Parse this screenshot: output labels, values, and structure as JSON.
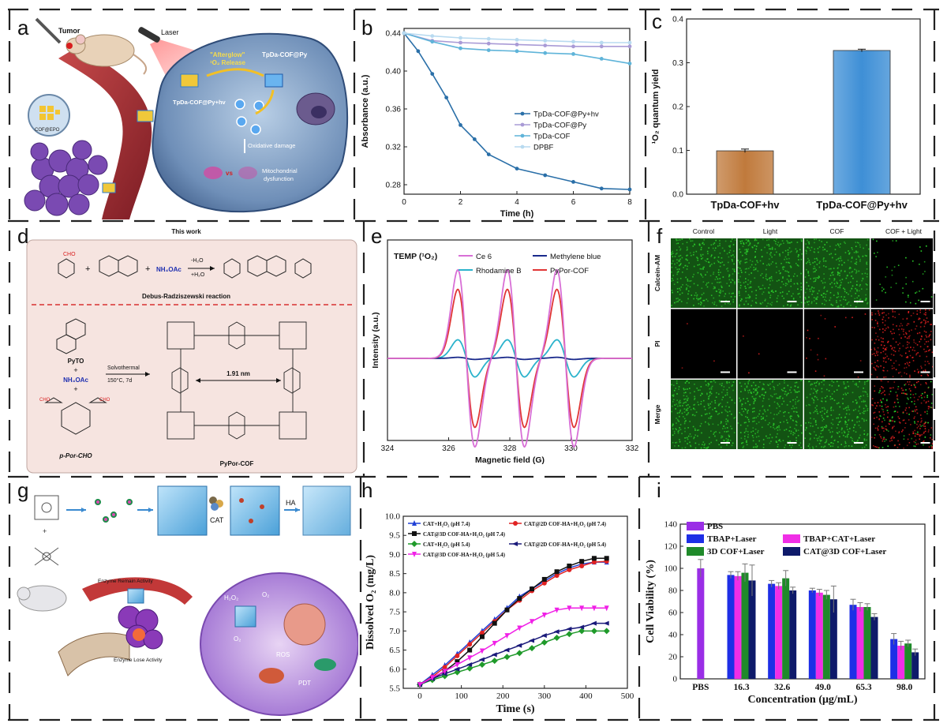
{
  "panel_letters": {
    "a": "a",
    "b": "b",
    "c": "c",
    "d": "d",
    "e": "e",
    "f": "f",
    "g": "g",
    "h": "h",
    "i": "i"
  },
  "panel_a": {
    "laser": "Laser",
    "tumor": "Tumor",
    "afterglow_line1": "\"Afterglow\"",
    "afterglow_line2": "¹O₂ Release",
    "cof_py": "TpDa-COF@Py",
    "cof_py_hv": "TpDa-COF@Py+hv",
    "oxidative": "Oxidative damage",
    "vs": "vs",
    "mito1": "Mitochondrial",
    "mito2": "dysfunction",
    "epo": "COF@EPO"
  },
  "panel_d": {
    "this_work": "This work",
    "reaction": "Debus-Radziszewski reaction",
    "cho": "CHO",
    "nh4oac": "NH₄OAc",
    "minus_h2o": "-H₂O",
    "plus_h2o": "+H₂O",
    "pyto": "PyTO",
    "plus": "+",
    "nh4oac2": "NH₄OAc",
    "solvo": "Solvothermal",
    "cond": "150°C, 7d",
    "dist": "1.91 nm",
    "porcho": "p-Por-CHO",
    "pypor": "PyPor-COF"
  },
  "panel_f": {
    "cols": [
      "Control",
      "Light",
      "COF",
      "COF + Light"
    ],
    "rows": [
      "Calcein-AM",
      "PI",
      "Merge"
    ]
  },
  "panel_g": {
    "cat": "CAT",
    "ha": "HA",
    "remain": "Enzyme Remain Activity",
    "lose": "Enzyme Lose Activity",
    "h2o2": "H₂O₂",
    "o2a": "O₂",
    "o2b": "O₂",
    "ros": "ROS",
    "pdt": "PDT"
  },
  "chart_data": [
    {
      "id": "b",
      "type": "line",
      "xlabel": "Time (h)",
      "ylabel": "Absorbance (a.u.)",
      "xlim": [
        0,
        8
      ],
      "ylim": [
        0.27,
        0.445
      ],
      "xticks": [
        0,
        2,
        4,
        6,
        8
      ],
      "yticks": [
        0.28,
        0.32,
        0.36,
        0.4,
        0.44
      ],
      "series": [
        {
          "name": "TpDa-COF@Py+hv",
          "color": "#2a6fa8",
          "x": [
            0,
            0.5,
            1,
            1.5,
            2,
            2.5,
            3,
            4,
            5,
            6,
            7,
            8
          ],
          "y": [
            0.44,
            0.421,
            0.397,
            0.372,
            0.343,
            0.328,
            0.312,
            0.297,
            0.29,
            0.283,
            0.276,
            0.275
          ]
        },
        {
          "name": "TpDa-COF@Py",
          "color": "#a99bd6",
          "x": [
            0,
            1,
            2,
            3,
            4,
            5,
            6,
            7,
            8
          ],
          "y": [
            0.44,
            0.432,
            0.43,
            0.429,
            0.428,
            0.427,
            0.426,
            0.426,
            0.426
          ]
        },
        {
          "name": "TpDa-COF",
          "color": "#5fb4d9",
          "x": [
            0,
            1,
            2,
            3,
            4,
            5,
            6,
            7,
            8
          ],
          "y": [
            0.44,
            0.431,
            0.424,
            0.422,
            0.421,
            0.419,
            0.418,
            0.413,
            0.408
          ]
        },
        {
          "name": "DPBF",
          "color": "#b8daf0",
          "x": [
            0,
            1,
            2,
            3,
            4,
            5,
            6,
            7,
            8
          ],
          "y": [
            0.44,
            0.437,
            0.435,
            0.434,
            0.433,
            0.432,
            0.431,
            0.43,
            0.43
          ]
        }
      ]
    },
    {
      "id": "c",
      "type": "bar",
      "ylabel": "¹O₂ quantum yield",
      "ylim": [
        0,
        0.4
      ],
      "yticks": [
        0,
        0.1,
        0.2,
        0.3,
        0.4
      ],
      "categories": [
        "TpDa-COF+hv",
        "TpDa-COF@Py+hv"
      ],
      "values": [
        0.099,
        0.328
      ],
      "errors": [
        0.004,
        0.003
      ],
      "colors": [
        "#c07a3c",
        "#3e8fd6"
      ]
    },
    {
      "id": "e",
      "type": "line",
      "title": "TEMP (¹O₂)",
      "xlabel": "Magnetic field (G)",
      "ylabel": "Intensity (a.u.)",
      "xlim": [
        324,
        332
      ],
      "xticks": [
        324,
        326,
        328,
        330,
        332
      ],
      "line_centers": [
        326.58,
        328.2,
        329.82
      ],
      "series": [
        {
          "name": "Ce 6",
          "color": "#d86fd6",
          "amplitude": 1.0
        },
        {
          "name": "Methylene blue",
          "color": "#1a2a8c",
          "amplitude": 0.012
        },
        {
          "name": "Rhodamine B",
          "color": "#2bb3cc",
          "amplitude": 0.21
        },
        {
          "name": "PyPor-COF",
          "color": "#e03535",
          "amplitude": 0.78
        }
      ]
    },
    {
      "id": "h",
      "type": "line",
      "xlabel": "Time (s)",
      "ylabel": "Dissolved O₂ (mg/L)",
      "xlim": [
        -40,
        500
      ],
      "ylim": [
        5.5,
        10.0
      ],
      "xticks": [
        0,
        100,
        200,
        300,
        400,
        500
      ],
      "yticks": [
        5.5,
        6.0,
        6.5,
        7.0,
        7.5,
        8.0,
        8.5,
        9.0,
        9.5,
        10.0
      ],
      "series": [
        {
          "name": "CAT+H₂O₂ (pH 7.4)",
          "color": "#1f3fd6",
          "marker": "triangle",
          "x": [
            0,
            30,
            60,
            90,
            120,
            150,
            180,
            210,
            240,
            270,
            300,
            330,
            360,
            390,
            420,
            450
          ],
          "y": [
            5.6,
            5.85,
            6.1,
            6.4,
            6.7,
            7.0,
            7.3,
            7.6,
            7.9,
            8.1,
            8.3,
            8.5,
            8.65,
            8.75,
            8.8,
            8.8
          ]
        },
        {
          "name": "CAT@2D COF-HA+H₂O₂ (pH 7.4)",
          "color": "#e02222",
          "marker": "circle",
          "x": [
            0,
            30,
            60,
            90,
            120,
            150,
            180,
            210,
            240,
            270,
            300,
            330,
            360,
            390,
            420,
            450
          ],
          "y": [
            5.6,
            5.8,
            6.05,
            6.35,
            6.65,
            6.95,
            7.25,
            7.55,
            7.8,
            8.05,
            8.25,
            8.45,
            8.6,
            8.7,
            8.8,
            8.82
          ]
        },
        {
          "name": "CAT@3D COF-HA+H₂O₂ (pH 7.4)",
          "color": "#111111",
          "marker": "square",
          "x": [
            0,
            30,
            60,
            90,
            120,
            150,
            180,
            210,
            240,
            270,
            300,
            330,
            360,
            390,
            420,
            450
          ],
          "y": [
            5.6,
            5.75,
            5.95,
            6.2,
            6.5,
            6.85,
            7.2,
            7.55,
            7.85,
            8.1,
            8.35,
            8.55,
            8.7,
            8.82,
            8.9,
            8.9
          ]
        },
        {
          "name": "CAT+H₂O₂ (pH 5.4)",
          "color": "#1f9a2a",
          "marker": "diamond",
          "x": [
            0,
            30,
            60,
            90,
            120,
            150,
            180,
            210,
            240,
            270,
            300,
            330,
            360,
            390,
            420,
            450
          ],
          "y": [
            5.6,
            5.72,
            5.82,
            5.92,
            6.02,
            6.12,
            6.22,
            6.32,
            6.42,
            6.55,
            6.7,
            6.82,
            6.92,
            7.0,
            7.0,
            7.0
          ]
        },
        {
          "name": "CAT@2D COF-HA+H₂O₂ (pH 5.4)",
          "color": "#1a1a7a",
          "marker": "tri-left",
          "x": [
            0,
            30,
            60,
            90,
            120,
            150,
            180,
            210,
            240,
            270,
            300,
            330,
            360,
            390,
            420,
            450
          ],
          "y": [
            5.6,
            5.75,
            5.88,
            6.0,
            6.12,
            6.25,
            6.38,
            6.5,
            6.62,
            6.75,
            6.88,
            6.98,
            7.05,
            7.1,
            7.2,
            7.2
          ]
        },
        {
          "name": "CAT@3D COF-HA+H₂O₂ (pH 5.4)",
          "color": "#f020e6",
          "marker": "tri-down",
          "x": [
            0,
            30,
            60,
            90,
            120,
            150,
            180,
            210,
            240,
            270,
            300,
            330,
            360,
            390,
            420,
            450
          ],
          "y": [
            5.6,
            5.78,
            5.95,
            6.12,
            6.3,
            6.48,
            6.68,
            6.88,
            7.08,
            7.25,
            7.42,
            7.55,
            7.6,
            7.6,
            7.6,
            7.6
          ]
        }
      ]
    },
    {
      "id": "i",
      "type": "bar",
      "xlabel": "Concentration (μg/mL)",
      "ylabel": "Cell Viability (%)",
      "ylim": [
        0,
        140
      ],
      "yticks": [
        0,
        20,
        40,
        60,
        80,
        100,
        120,
        140
      ],
      "categories": [
        "PBS",
        "16.3",
        "32.6",
        "49.0",
        "65.3",
        "98.0"
      ],
      "series": [
        {
          "name": "PBS",
          "color": "#9a2ee6",
          "values": [
            100,
            null,
            null,
            null,
            null,
            null
          ],
          "errors": [
            8,
            null,
            null,
            null,
            null,
            null
          ]
        },
        {
          "name": "TBAP+Laser",
          "color": "#1e2fe6",
          "values": [
            null,
            94,
            86,
            80,
            67,
            36
          ],
          "errors": [
            null,
            3,
            3,
            2,
            5,
            5
          ]
        },
        {
          "name": "TBAP+CAT+Laser",
          "color": "#f02ee6",
          "values": [
            null,
            93,
            84,
            78,
            65,
            30
          ],
          "errors": [
            null,
            4,
            3,
            3,
            4,
            4
          ]
        },
        {
          "name": "3D COF+Laser",
          "color": "#1f8a2a",
          "values": [
            null,
            96,
            91,
            76,
            65,
            32
          ],
          "errors": [
            null,
            8,
            7,
            4,
            3,
            3
          ]
        },
        {
          "name": "CAT@3D COF+Laser",
          "color": "#0e1a6a",
          "values": [
            null,
            89,
            80,
            72,
            56,
            24
          ],
          "errors": [
            null,
            14,
            3,
            12,
            3,
            3
          ]
        }
      ]
    }
  ]
}
